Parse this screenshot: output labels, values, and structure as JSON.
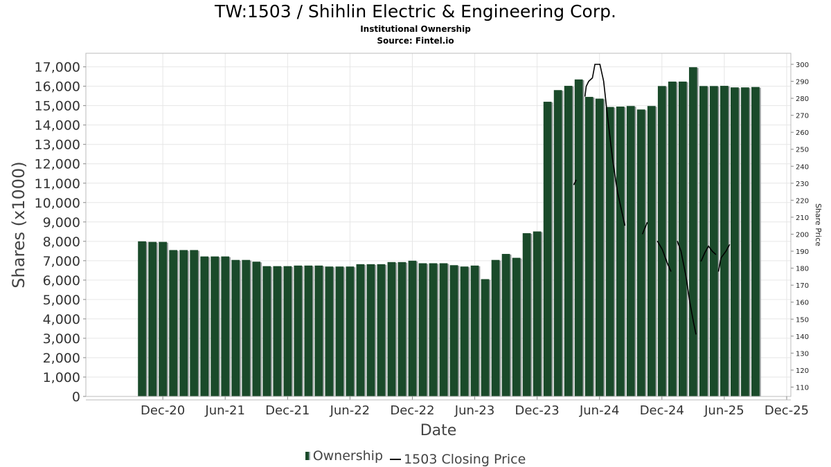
{
  "title": "TW:1503 / Shihlin Electric & Engineering Corp.",
  "subtitle": "Institutional Ownership",
  "source": "Source: Fintel.io",
  "legend": {
    "ownership": "Ownership",
    "price": "1503 Closing Price"
  },
  "colors": {
    "bar": "#1a4a2a",
    "bar_edge": "#9aa0a0",
    "line": "#000000",
    "grid": "#e6e6e6"
  },
  "chart_data": {
    "type": "bar",
    "title": "TW:1503 / Shihlin Electric & Engineering Corp.",
    "xlabel": "Date",
    "ylabel": "Shares (x1000)",
    "y2label": "Share Price",
    "ylim": [
      0,
      17700
    ],
    "y2lim": [
      104.5,
      306.5
    ],
    "grid": true,
    "legend_position": "bottom",
    "x_ticks": [
      "Dec-20",
      "Jun-21",
      "Dec-21",
      "Jun-22",
      "Dec-22",
      "Jun-23",
      "Dec-23",
      "Jun-24",
      "Dec-24",
      "Jun-25",
      "Dec-25"
    ],
    "y_ticks": [
      "0",
      "1,000",
      "2,000",
      "3,000",
      "4,000",
      "5,000",
      "6,000",
      "7,000",
      "8,000",
      "9,000",
      "10,000",
      "11,000",
      "12,000",
      "13,000",
      "14,000",
      "15,000",
      "16,000",
      "17,000"
    ],
    "y2_ticks": [
      "110",
      "120",
      "130",
      "140",
      "150",
      "160",
      "170",
      "180",
      "190",
      "200",
      "210",
      "220",
      "230",
      "240",
      "250",
      "260",
      "270",
      "280",
      "290",
      "300"
    ],
    "series": [
      {
        "name": "Ownership",
        "type": "bar",
        "values": [
          8000,
          7970,
          7970,
          7550,
          7550,
          7550,
          7220,
          7220,
          7220,
          7040,
          7040,
          6950,
          6720,
          6720,
          6720,
          6750,
          6750,
          6750,
          6700,
          6700,
          6700,
          6820,
          6820,
          6820,
          6930,
          6930,
          7000,
          6870,
          6870,
          6870,
          6770,
          6700,
          6750,
          6050,
          7040,
          7350,
          7150,
          8420,
          8510,
          15200,
          15800,
          16020,
          16350,
          15450,
          15360,
          14930,
          14950,
          14980,
          14800,
          14980,
          16010,
          16240,
          16240,
          16980,
          16010,
          16010,
          16020,
          15940,
          15940,
          15960
        ]
      },
      {
        "name": "1503 Closing Price",
        "type": "line",
        "segments": [
          [
            [
              2024.21,
              229
            ],
            [
              2024.23,
              232
            ]
          ],
          [
            [
              2024.3,
              281
            ],
            [
              2024.31,
              287
            ],
            [
              2024.33,
              290
            ],
            [
              2024.36,
              292
            ],
            [
              2024.38,
              300
            ],
            [
              2024.42,
              300
            ],
            [
              2024.45,
              290
            ],
            [
              2024.48,
              270
            ],
            [
              2024.52,
              245
            ],
            [
              2024.56,
              225
            ],
            [
              2024.62,
              205
            ]
          ],
          [
            [
              2024.76,
              200
            ],
            [
              2024.8,
              207
            ]
          ],
          [
            [
              2024.88,
              196
            ],
            [
              2024.92,
              191
            ],
            [
              2024.96,
              183
            ],
            [
              2024.99,
              178
            ]
          ],
          [
            [
              2025.04,
              196
            ],
            [
              2025.07,
              190
            ],
            [
              2025.11,
              175
            ],
            [
              2025.14,
              160
            ],
            [
              2025.17,
              148
            ],
            [
              2025.19,
              141
            ]
          ],
          [
            [
              2025.23,
              184
            ],
            [
              2025.26,
              189
            ],
            [
              2025.29,
              193
            ],
            [
              2025.32,
              190
            ],
            [
              2025.35,
              188
            ]
          ],
          [
            [
              2025.37,
              178
            ],
            [
              2025.39,
              186
            ],
            [
              2025.43,
              190
            ],
            [
              2025.46,
              194
            ]
          ]
        ]
      }
    ],
    "bar_start": 2020.75,
    "bar_step": 0.08333
  }
}
